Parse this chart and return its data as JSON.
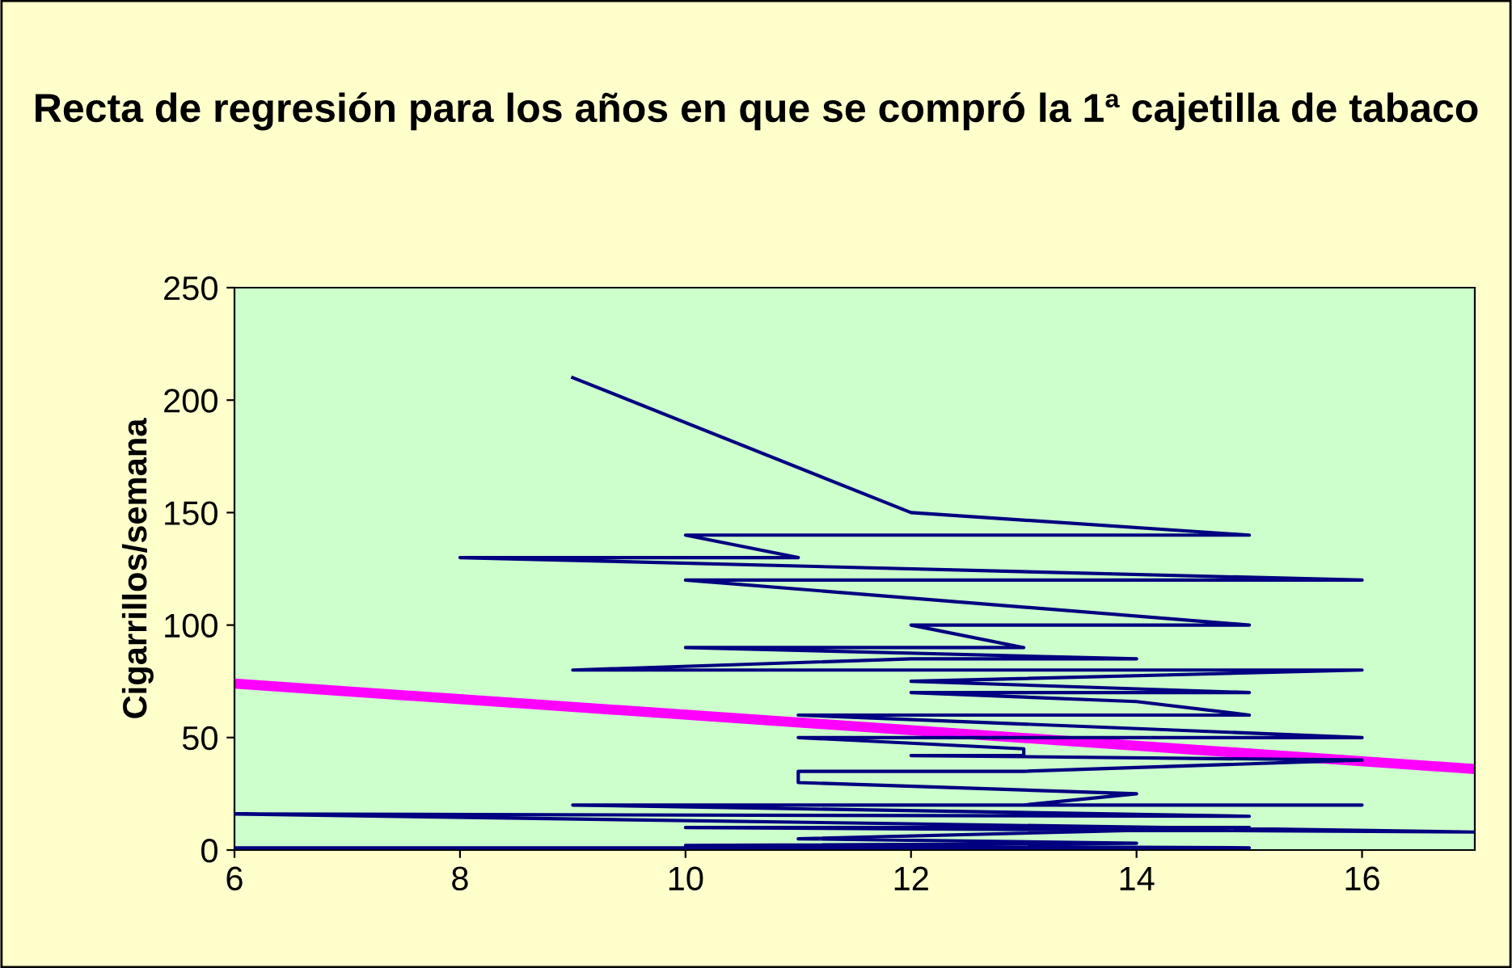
{
  "chart_data": {
    "type": "line",
    "title": "Recta de regresión para los años en que se compró la 1ª cajetilla de tabaco",
    "ylabel": "Cigarrillos/semana",
    "xlim": [
      6,
      17
    ],
    "ylim": [
      0,
      250
    ],
    "xticks": [
      6,
      8,
      10,
      12,
      14,
      16
    ],
    "yticks": [
      0,
      50,
      100,
      150,
      200,
      250
    ],
    "grid": false,
    "legend": false,
    "series": [
      {
        "color": "#000080",
        "x": [
          9,
          12,
          15,
          10,
          11,
          8,
          16,
          10,
          15,
          12,
          13,
          10,
          14,
          12,
          9,
          16,
          12,
          15,
          12,
          14,
          15,
          11,
          16,
          11,
          13,
          13,
          12,
          16,
          13,
          11,
          11,
          14,
          13,
          16,
          9,
          15,
          6,
          17,
          10,
          15,
          11,
          14,
          10,
          15,
          6
        ],
        "values": [
          210,
          150,
          140,
          140,
          130,
          130,
          120,
          120,
          100,
          100,
          90,
          90,
          85,
          85,
          80,
          80,
          75,
          70,
          70,
          66,
          60,
          60,
          50,
          50,
          45,
          42,
          42,
          40,
          35,
          35,
          30,
          25,
          20,
          20,
          20,
          15,
          16,
          8,
          10,
          10,
          5,
          3,
          2,
          1,
          1
        ]
      },
      {
        "color": "#ff00ff",
        "x": [
          6,
          17
        ],
        "values": [
          74,
          36
        ]
      }
    ]
  }
}
